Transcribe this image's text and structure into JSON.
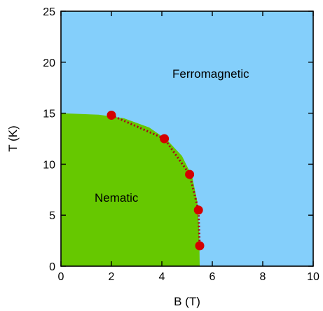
{
  "chart_data": {
    "type": "scatter",
    "title": "",
    "xlabel": "B (T)",
    "ylabel": "T (K)",
    "xlim": [
      0,
      10
    ],
    "ylim": [
      0,
      25
    ],
    "x_ticks": [
      0,
      2,
      4,
      6,
      8,
      10
    ],
    "y_ticks": [
      0,
      5,
      10,
      15,
      20,
      25
    ],
    "grid": false,
    "regions": [
      {
        "label": "Ferromagnetic",
        "color": "#84CFFB"
      },
      {
        "label": "Nematic",
        "color": "#66C800",
        "boundary": [
          [
            0,
            15
          ],
          [
            1.5,
            14.85
          ],
          [
            2.5,
            14.5
          ],
          [
            3.5,
            13.6
          ],
          [
            4.2,
            12.4
          ],
          [
            4.8,
            10.8
          ],
          [
            5.2,
            8.8
          ],
          [
            5.4,
            6.4
          ],
          [
            5.48,
            3.6
          ],
          [
            5.5,
            0
          ]
        ]
      }
    ],
    "series": [
      {
        "x": [
          2.0,
          4.1,
          5.1,
          5.45,
          5.5
        ],
        "y": [
          14.8,
          12.5,
          9.0,
          5.5,
          2.0
        ],
        "marker_color": "#D40000",
        "line_style": "dotted",
        "line_color": "#A8001A"
      }
    ]
  }
}
